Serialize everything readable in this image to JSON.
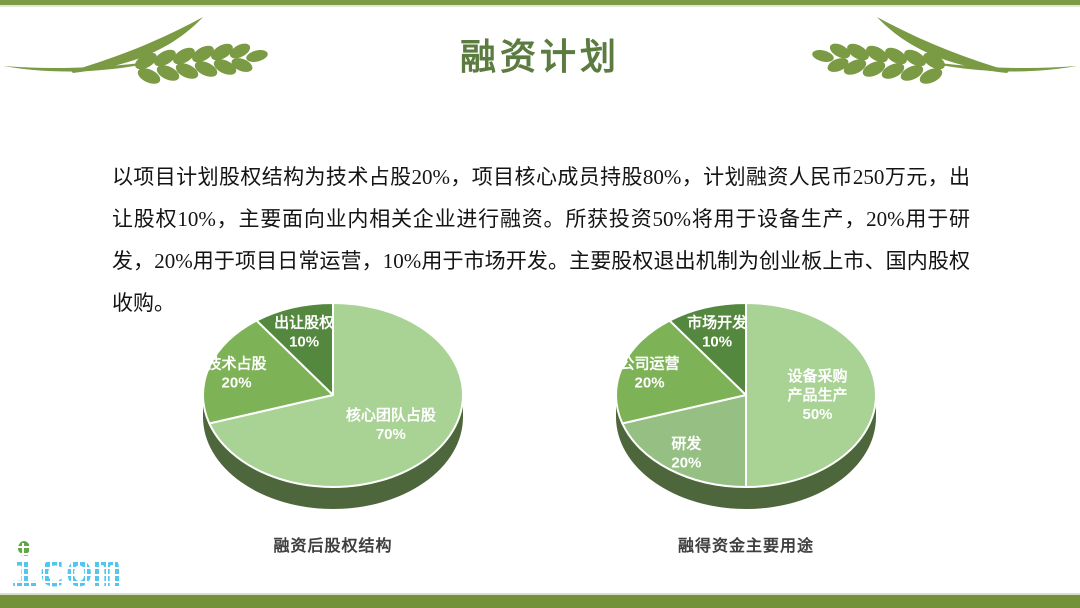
{
  "slide": {
    "title": "融资计划",
    "body_text": "以项目计划股权结构为技术占股20%，项目核心成员持股80%，计划融资人民币250万元，出让股权10%，主要面向业内相关企业进行融资。所获投资50%将用于设备生产，20%用于研发，20%用于项目日常运营，10%用于市场开发。主要股权退出机制为创业板上市、国内股权收购。",
    "logo_text": "icom",
    "colors": {
      "top_bar": "#7d9c49",
      "bottom_bar": "#73903b",
      "title_green": "#5c7b40",
      "wheat_green": "#7a9a43",
      "logo_blue": "#53c6f0",
      "logo_drop_green": "#5fa844",
      "caption_gray": "#3f3f3f"
    }
  },
  "chart_data": [
    {
      "type": "pie",
      "style": "3d",
      "title": "融资后股权结构",
      "labels": [
        "核心团队占股",
        "技术占股",
        "出让股权"
      ],
      "values": [
        70,
        20,
        10
      ],
      "colors": [
        "#a9d295",
        "#7db356",
        "#55883f"
      ],
      "rim_color": "#4e663b",
      "start_angle_deg": 0,
      "direction": "clockwise",
      "data_labels": [
        "核心团队占股 70%",
        "技术占股 20%",
        "出让股权 10%"
      ],
      "legend": "none"
    },
    {
      "type": "pie",
      "style": "3d",
      "title": "融得资金主要用途",
      "labels": [
        "设备采购\n产品生产",
        "研发",
        "公司运营",
        "市场开发"
      ],
      "values": [
        50,
        20,
        20,
        10
      ],
      "colors": [
        "#a9d295",
        "#96bf83",
        "#7db356",
        "#55883f"
      ],
      "rim_color": "#4e663b",
      "start_angle_deg": 0,
      "direction": "clockwise",
      "data_labels": [
        "设备采购 产品生产 50%",
        "研发 20%",
        "公司运营 20%",
        "市场开发 10%"
      ],
      "legend": "none"
    }
  ]
}
